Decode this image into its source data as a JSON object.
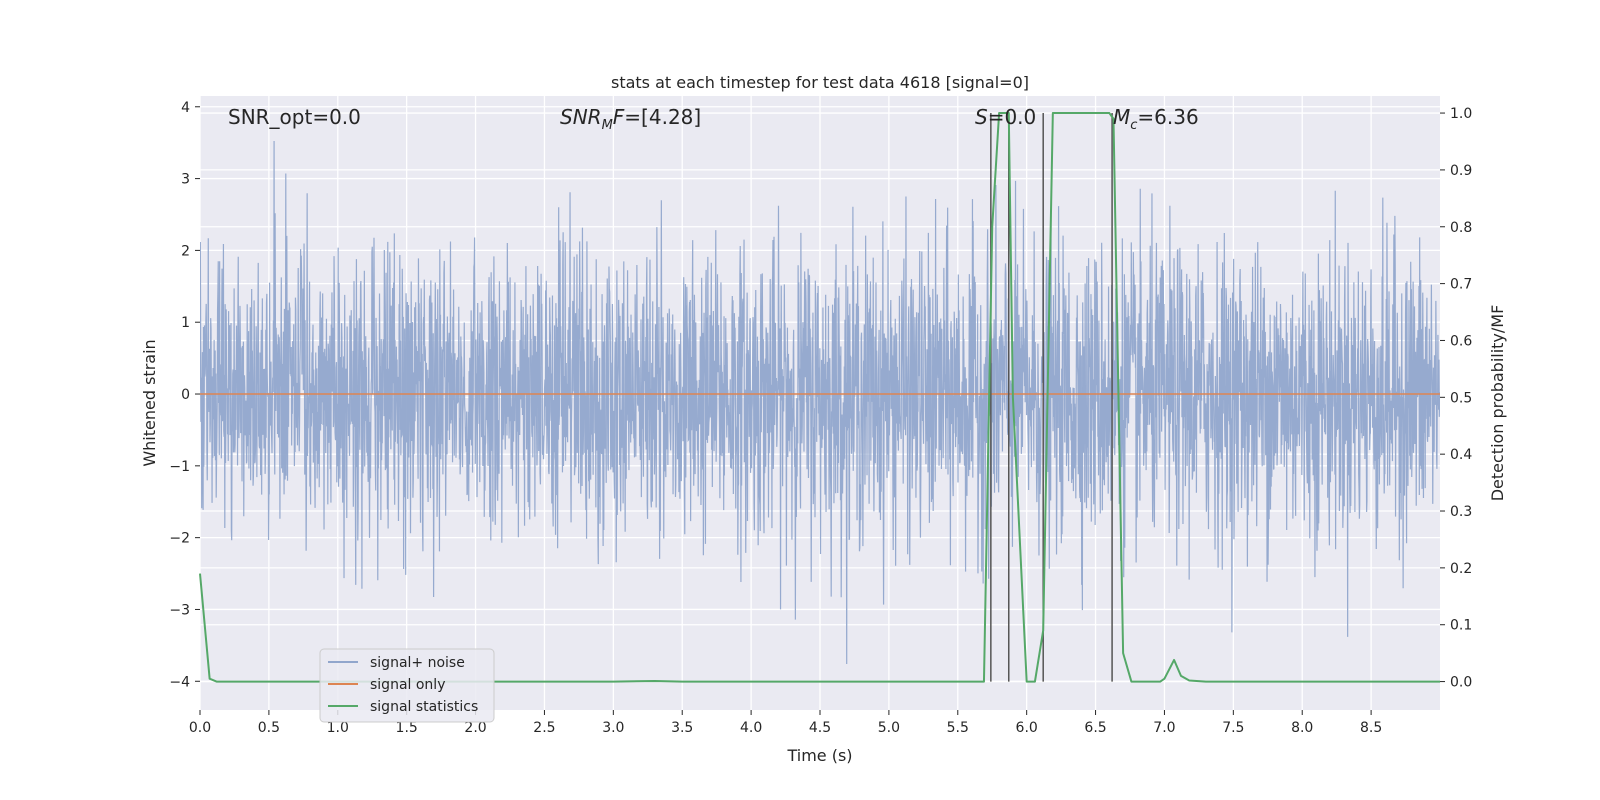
{
  "chart_data": {
    "type": "line",
    "title": "stats at each timestep for test data 4618 [signal=0]",
    "xlabel": "Time (s)",
    "ylabel_left": "Whitened strain",
    "ylabel_right": "Detection probability/MF",
    "xlim": [
      0,
      9.0
    ],
    "ylim_left": [
      -4.4,
      4.15
    ],
    "ylim_right": [
      -0.05,
      1.03
    ],
    "xticks": [
      "0.0",
      "0.5",
      "1.0",
      "1.5",
      "2.0",
      "2.5",
      "3.0",
      "3.5",
      "4.0",
      "4.5",
      "5.0",
      "5.5",
      "6.0",
      "6.5",
      "7.0",
      "7.5",
      "8.0",
      "8.5"
    ],
    "yticks_left": [
      "4",
      "3",
      "2",
      "1",
      "0",
      "−1",
      "−2",
      "−3",
      "−4"
    ],
    "yticks_right": [
      "1.0",
      "0.9",
      "0.8",
      "0.7",
      "0.6",
      "0.5",
      "0.4",
      "0.3",
      "0.2",
      "0.1",
      "0.0"
    ],
    "grid": true,
    "legend_position": "lower-left",
    "annotations": {
      "snr_opt": "SNR_opt=0.0",
      "snr_mf_main": "SNR",
      "snr_mf_sub": "M",
      "snr_mf_rest": "F=[4.28]",
      "s_main": "S",
      "s_rest": "=0.0",
      "mc_main": "M",
      "mc_sub": "c",
      "mc_rest": "=6.36"
    },
    "series": [
      {
        "name": "signal+ noise",
        "color": "#91a6cc",
        "description_values": "whitened noise, roughly Gaussian, amplitude ±1.5 typical with spikes to about ±3.7",
        "x_range": [
          0,
          9.0
        ]
      },
      {
        "name": "signal only",
        "color": "#dd8452",
        "x": [
          0,
          9.0
        ],
        "y": [
          0,
          0
        ]
      },
      {
        "name": "signal statistics",
        "color": "#55a868",
        "x": [
          0.0,
          0.07,
          0.12,
          0.2,
          1.0,
          2.0,
          3.0,
          3.3,
          3.5,
          4.0,
          5.0,
          5.5,
          5.69,
          5.75,
          5.8,
          5.83,
          5.87,
          5.9,
          6.0,
          6.06,
          6.12,
          6.19,
          6.5,
          6.6,
          6.63,
          6.7,
          6.76,
          6.8,
          6.9,
          6.97,
          7.0,
          7.07,
          7.12,
          7.18,
          7.3,
          8.0,
          9.0
        ],
        "y": [
          0.19,
          0.005,
          0.0,
          0.0,
          0.0,
          0.0,
          0.0,
          0.001,
          0.0,
          0.0,
          0.0,
          0.0,
          0.0,
          0.8,
          1.0,
          1.0,
          1.0,
          0.5,
          0.0,
          0.0,
          0.09,
          1.0,
          1.0,
          1.0,
          0.99,
          0.05,
          0.0,
          0.0,
          0.0,
          0.0,
          0.005,
          0.038,
          0.01,
          0.002,
          0.0,
          0.0,
          0.0
        ]
      }
    ],
    "vertical_lines_x": [
      5.74,
      5.87,
      6.12,
      6.62
    ]
  }
}
